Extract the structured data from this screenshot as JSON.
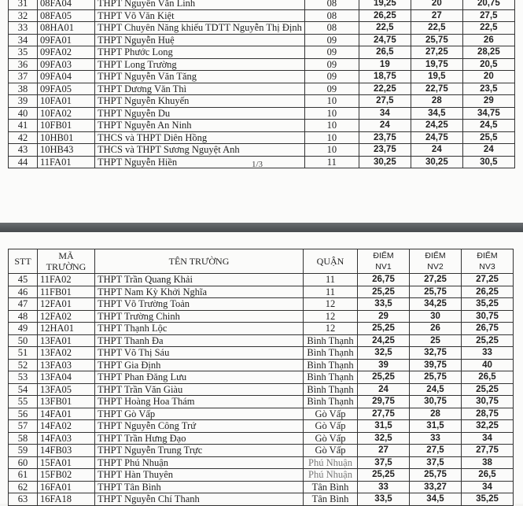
{
  "page1": {
    "page_number": "1/3",
    "rows": [
      [
        "31",
        "08FA04",
        "THPT Nguyễn Văn Linh",
        "08",
        "19,25",
        "20",
        "20,75"
      ],
      [
        "32",
        "08FA05",
        "THPT Võ Văn Kiệt",
        "08",
        "26,25",
        "27",
        "27,5"
      ],
      [
        "33",
        "08HA01",
        "THPT Chuyên Năng khiếu TDTT Nguyễn Thị Định",
        "08",
        "22,5",
        "22,5",
        "22,5"
      ],
      [
        "34",
        "09FA01",
        "THPT Nguyễn Huệ",
        "09",
        "24,75",
        "25,75",
        "26"
      ],
      [
        "35",
        "09FA02",
        "THPT Phước Long",
        "09",
        "26,5",
        "27,25",
        "28,25"
      ],
      [
        "36",
        "09FA03",
        "THPT Long Trường",
        "09",
        "19",
        "19,75",
        "20,5"
      ],
      [
        "37",
        "09FA04",
        "THPT Nguyễn Văn Tăng",
        "09",
        "18,75",
        "19,5",
        "20"
      ],
      [
        "38",
        "09FA05",
        "THPT Dương Văn Thì",
        "09",
        "22,25",
        "22,75",
        "23,5"
      ],
      [
        "39",
        "10FA01",
        "THPT Nguyễn Khuyến",
        "10",
        "27,5",
        "28",
        "29"
      ],
      [
        "40",
        "10FA02",
        "THPT Nguyễn Du",
        "10",
        "34",
        "34,5",
        "34,75"
      ],
      [
        "41",
        "10FB01",
        "THPT Nguyễn An Ninh",
        "10",
        "24",
        "24,25",
        "24,5"
      ],
      [
        "42",
        "10HB01",
        "THCS và THPT Diên Hồng",
        "10",
        "23,75",
        "24,75",
        "25,5"
      ],
      [
        "43",
        "10HB43",
        "THCS và THPT Sương Nguyệt Anh",
        "10",
        "23,75",
        "24",
        "24"
      ],
      [
        "44",
        "11FA01",
        "THPT Nguyễn Hiền",
        "11",
        "30,25",
        "30,25",
        "30,5"
      ]
    ]
  },
  "page2": {
    "headers": {
      "stt": "STT",
      "code_1": "MÃ",
      "code_2": "TRƯỜNG",
      "name": "TÊN TRƯỜNG",
      "district": "QUẬN",
      "nv1_1": "ĐIỂM",
      "nv1_2": "NV1",
      "nv2_1": "ĐIỂM",
      "nv2_2": "NV2",
      "nv3_1": "ĐIỂM",
      "nv3_2": "NV3"
    },
    "rows": [
      [
        "45",
        "11FA02",
        "THPT Trần Quang Khải",
        "11",
        "26,75",
        "27,25",
        "27,25"
      ],
      [
        "46",
        "11FB01",
        "THPT Nam Kỳ Khởi Nghĩa",
        "11",
        "25,25",
        "25,75",
        "26,25"
      ],
      [
        "47",
        "12FA01",
        "THPT Võ Trường Toản",
        "12",
        "33,5",
        "34,25",
        "35,25"
      ],
      [
        "48",
        "12FA02",
        "THPT Trường Chinh",
        "12",
        "29",
        "30",
        "30,75"
      ],
      [
        "49",
        "12HA01",
        "THPT Thạnh Lộc",
        "12",
        "25,25",
        "26",
        "26,75"
      ],
      [
        "50",
        "13FA01",
        "THPT Thanh Đa",
        "Bình Thạnh",
        "24,25",
        "25",
        "25,25"
      ],
      [
        "51",
        "13FA02",
        "THPT Võ Thị Sáu",
        "Bình Thạnh",
        "32,5",
        "32,75",
        "33"
      ],
      [
        "52",
        "13FA03",
        "THPT Gia Định",
        "Bình Thạnh",
        "39",
        "39,75",
        "40"
      ],
      [
        "53",
        "13FA04",
        "THPT Phan Đăng Lưu",
        "Bình Thạnh",
        "25,25",
        "25,75",
        "26,5"
      ],
      [
        "54",
        "13FA05",
        "THPT Trần Văn Giàu",
        "Bình Thạnh",
        "24",
        "24,5",
        "25,25"
      ],
      [
        "55",
        "13FB01",
        "THPT Hoàng Hoa Thám",
        "Bình Thạnh",
        "29,75",
        "30,75",
        "30,75"
      ],
      [
        "56",
        "14FA01",
        "THPT Gò Vấp",
        "Gò Vấp",
        "27,75",
        "28",
        "28,75"
      ],
      [
        "57",
        "14FA02",
        "THPT Nguyễn Công Trứ",
        "Gò Vấp",
        "31,5",
        "31,5",
        "32,25"
      ],
      [
        "58",
        "14FA03",
        "THPT Trần Hưng Đạo",
        "Gò Vấp",
        "32,5",
        "33",
        "34"
      ],
      [
        "59",
        "14FB03",
        "THPT Nguyễn Trung Trực",
        "Gò Vấp",
        "27",
        "27,5",
        "27,75"
      ],
      [
        "60",
        "15FA01",
        "THPT Phú Nhuận",
        "Phú Nhuận",
        "37,5",
        "37,5",
        "38"
      ],
      [
        "61",
        "15FB02",
        "THPT Hàn Thuyên",
        "Phú Nhuận",
        "25,25",
        "25,75",
        "26,5"
      ],
      [
        "62",
        "16FA01",
        "THPT Tân Bình",
        "Tân Bình",
        "33",
        "33,27",
        "34"
      ],
      [
        "63",
        "16FA18",
        "THPT Nguyễn Chí Thanh",
        "Tân Bình",
        "33,5",
        "34,5",
        "35,25"
      ]
    ]
  }
}
